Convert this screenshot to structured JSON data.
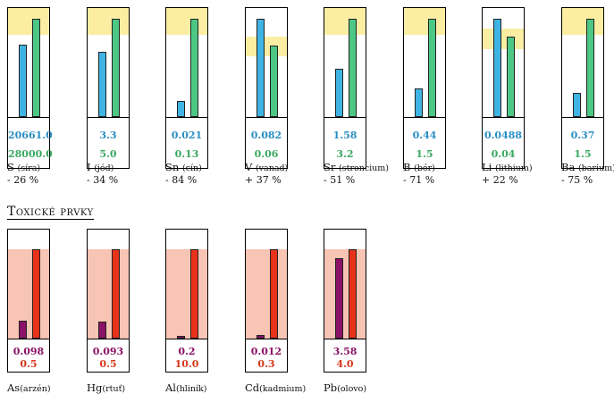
{
  "colors": {
    "measured_beneficial": "#3fb3e3",
    "reference_beneficial": "#4cc784",
    "band_beneficial": "#fbeea3",
    "measured_toxic": "#8b1266",
    "reference_toxic": "#e8321a",
    "band_toxic": "#f8c4b4",
    "text_measured_beneficial": "#2a8fc4",
    "text_reference_beneficial": "#3aa862",
    "text_measured_toxic": "#8b1266",
    "text_reference_toxic": "#d8391c"
  },
  "section_toxic_title": "Toxické prvky",
  "chart_data": [
    {
      "type": "bar",
      "group": "beneficial",
      "elements": [
        {
          "symbol": "S",
          "name": "(síra)",
          "measured": "20661.0",
          "reference": "28000.0",
          "change": "- 26 %",
          "measured_level": 0.74,
          "reference_level": 1.0,
          "band": [
            0.84,
            1.0
          ]
        },
        {
          "symbol": "I",
          "name": "(jód)",
          "measured": "3.3",
          "reference": "5.0",
          "change": "- 34 %",
          "measured_level": 0.66,
          "reference_level": 1.0,
          "band": [
            0.84,
            1.0
          ]
        },
        {
          "symbol": "Sn",
          "name": "(cín)",
          "measured": "0.021",
          "reference": "0.13",
          "change": "- 84 %",
          "measured_level": 0.16,
          "reference_level": 1.0,
          "band": [
            0.84,
            1.0
          ]
        },
        {
          "symbol": "V",
          "name": "(vanad)",
          "measured": "0.082",
          "reference": "0.06",
          "change": "+ 37 %",
          "measured_level": 1.0,
          "reference_level": 0.73,
          "band": [
            0.62,
            0.82
          ]
        },
        {
          "symbol": "Sr",
          "name": "(stroncium)",
          "measured": "1.58",
          "reference": "3.2",
          "change": "- 51 %",
          "measured_level": 0.49,
          "reference_level": 1.0,
          "band": [
            0.84,
            1.0
          ]
        },
        {
          "symbol": "B",
          "name": "(bór)",
          "measured": "0.44",
          "reference": "1.5",
          "change": "- 71 %",
          "measured_level": 0.29,
          "reference_level": 1.0,
          "band": [
            0.84,
            1.0
          ]
        },
        {
          "symbol": "Li",
          "name": "(lithium)",
          "measured": "0.0488",
          "reference": "0.04",
          "change": "+ 22 %",
          "measured_level": 1.0,
          "reference_level": 0.82,
          "band": [
            0.69,
            0.9
          ]
        },
        {
          "symbol": "Ba",
          "name": "(barium)",
          "measured": "0.37",
          "reference": "1.5",
          "change": "- 75 %",
          "measured_level": 0.25,
          "reference_level": 1.0,
          "band": [
            0.84,
            1.0
          ]
        }
      ]
    },
    {
      "type": "bar",
      "group": "toxic",
      "elements": [
        {
          "symbol": "As",
          "name": "(arzén)",
          "measured": "0.098",
          "reference": "0.5",
          "measured_level": 0.2,
          "reference_level": 1.0,
          "band": [
            0.0,
            1.0
          ]
        },
        {
          "symbol": "Hg",
          "name": "(rtuť)",
          "measured": "0.093",
          "reference": "0.5",
          "measured_level": 0.19,
          "reference_level": 1.0,
          "band": [
            0.0,
            1.0
          ]
        },
        {
          "symbol": "Al",
          "name": "(hliník)",
          "measured": "0.2",
          "reference": "10.0",
          "measured_level": 0.02,
          "reference_level": 1.0,
          "band": [
            0.0,
            1.0
          ]
        },
        {
          "symbol": "Cd",
          "name": "(kadmium)",
          "measured": "0.012",
          "reference": "0.3",
          "measured_level": 0.04,
          "reference_level": 1.0,
          "band": [
            0.0,
            1.0
          ]
        },
        {
          "symbol": "Pb",
          "name": "(olovo)",
          "measured": "3.58",
          "reference": "4.0",
          "measured_level": 0.9,
          "reference_level": 1.0,
          "band": [
            0.0,
            1.0
          ]
        }
      ]
    }
  ]
}
